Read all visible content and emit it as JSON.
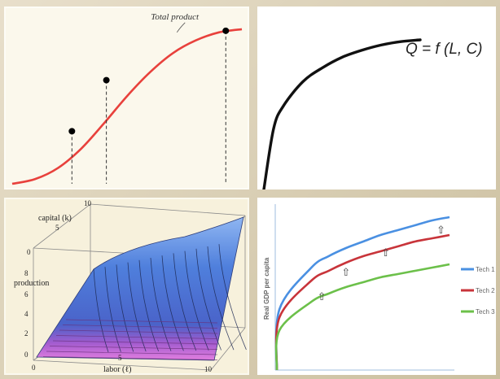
{
  "chart_data": [
    {
      "type": "line",
      "series": [
        {
          "name": "Total product",
          "x": [
            0,
            1,
            2,
            3,
            4,
            5,
            6,
            7,
            8,
            9,
            10
          ],
          "values": [
            0,
            3,
            10,
            22,
            38,
            55,
            70,
            82,
            90,
            95,
            97
          ]
        }
      ],
      "highlighted_points": [
        {
          "x": 2.6,
          "y": 33
        },
        {
          "x": 4.1,
          "y": 65
        },
        {
          "x": 9.3,
          "y": 96
        }
      ],
      "annotation": "Total product",
      "xlabel": "",
      "ylabel": "",
      "grid": false,
      "color": "#e8413c"
    },
    {
      "type": "line",
      "title": "Q = f (L, C)",
      "series": [
        {
          "name": "",
          "x": [
            0,
            0.5,
            1,
            2,
            3,
            4,
            5,
            6,
            7,
            8
          ],
          "values": [
            0,
            35,
            48,
            62,
            70,
            76,
            80,
            83,
            85,
            86
          ]
        }
      ],
      "xlabel": "",
      "ylabel": "",
      "grid": false,
      "color": "#111111"
    },
    {
      "type": "heatmap",
      "surface": "production = f(labor, capital), 3D surface with contour lines",
      "xlabel": "labor (ℓ)",
      "ylabel": "capital (k)",
      "zlabel": "production",
      "x_ticks": [
        "0",
        "5",
        "10"
      ],
      "y_ticks": [
        "0",
        "5",
        "10"
      ],
      "z_ticks": [
        "0",
        "2",
        "4",
        "6",
        "8"
      ],
      "colors": {
        "high": "#3f6fd6",
        "low": "#d06ad6"
      }
    },
    {
      "type": "line",
      "ylabel": "Real GDP per capita",
      "xlabel": "",
      "series": [
        {
          "name": "Tech 1",
          "color": "#4a90e2",
          "x": [
            0,
            1,
            2,
            3,
            4,
            5,
            6,
            7,
            8,
            9,
            10
          ],
          "values": [
            0,
            52,
            63,
            70,
            75,
            79,
            83,
            86,
            89,
            92,
            94
          ]
        },
        {
          "name": "Tech 2",
          "color": "#c8343a",
          "x": [
            0,
            1,
            2,
            3,
            4,
            5,
            6,
            7,
            8,
            9,
            10
          ],
          "values": [
            0,
            45,
            55,
            61,
            66,
            70,
            73,
            76,
            79,
            81,
            83
          ]
        },
        {
          "name": "Tech 3",
          "color": "#6cc04a",
          "x": [
            0,
            1,
            2,
            3,
            4,
            5,
            6,
            7,
            8,
            9,
            10
          ],
          "values": [
            0,
            34,
            42,
            47,
            51,
            54,
            57,
            59,
            61,
            63,
            65
          ]
        }
      ],
      "annotations": [
        "⇧",
        "⇧",
        "⇧",
        "⇧"
      ],
      "legend": "right",
      "grid": false
    }
  ]
}
